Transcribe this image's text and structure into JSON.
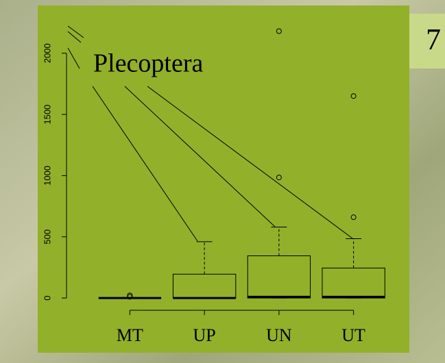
{
  "slide_number": "7",
  "chart_data": {
    "type": "box",
    "title": "Plecoptera",
    "categories": [
      "MT",
      "UP",
      "UN",
      "UT"
    ],
    "boxes": [
      {
        "min": 0,
        "q1": 0,
        "median": 0,
        "q3": 0,
        "max": 5,
        "outliers": [
          10,
          22
        ]
      },
      {
        "min": 0,
        "q1": 0,
        "median": 0,
        "q3": 195,
        "max": 460,
        "outliers": []
      },
      {
        "min": 0,
        "q1": 0,
        "median": 10,
        "q3": 345,
        "max": 580,
        "outliers": [
          985,
          2180
        ]
      },
      {
        "min": 0,
        "q1": 0,
        "median": 10,
        "q3": 245,
        "max": 485,
        "outliers": [
          660,
          1650
        ]
      }
    ],
    "color": "#93b02a",
    "ylim": [
      -100,
      2250
    ],
    "yticks": [
      0,
      500,
      1000,
      1500,
      2000
    ]
  }
}
